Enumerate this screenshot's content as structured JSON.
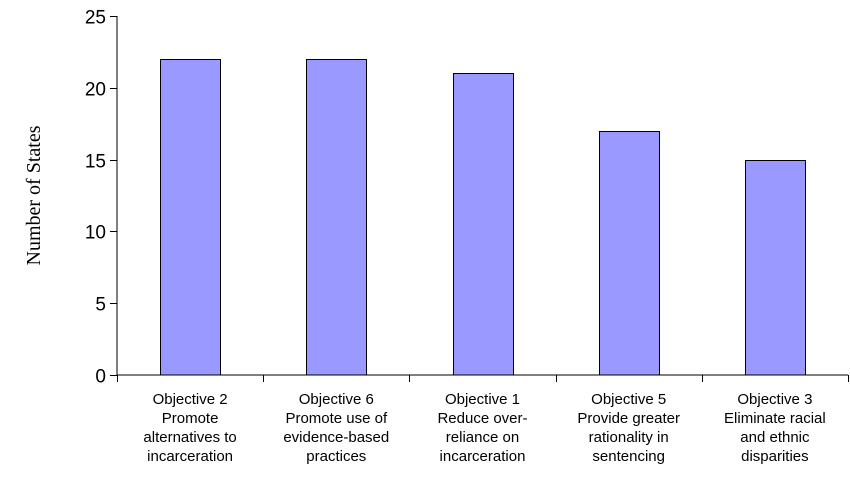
{
  "chart_data": {
    "type": "bar",
    "title": "",
    "xlabel": "",
    "ylabel": "Number of States",
    "ylim": [
      0,
      25
    ],
    "yticks": [
      0,
      5,
      10,
      15,
      20,
      25
    ],
    "grid": false,
    "legend": "none",
    "bar_color": "#9999ff",
    "categories": [
      [
        "Objective 2",
        "Promote",
        "alternatives to",
        "incarceration"
      ],
      [
        "Objective 6",
        "Promote use of",
        "evidence-based",
        "practices"
      ],
      [
        "Objective 1",
        "Reduce over-",
        "reliance on",
        "incarceration"
      ],
      [
        "Objective 5",
        "Provide greater",
        "rationality in",
        "sentencing"
      ],
      [
        "Objective 3",
        "Eliminate racial",
        "and ethnic",
        "disparities"
      ]
    ],
    "values": [
      22,
      22,
      21,
      17,
      15
    ]
  }
}
